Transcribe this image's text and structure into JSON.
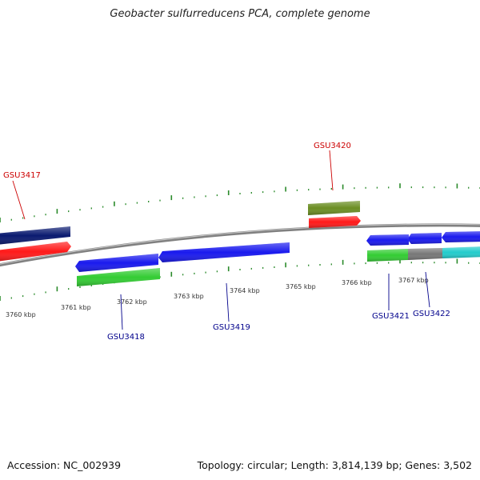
{
  "title": "Geobacter sulfurreducens PCA, complete genome",
  "footer": {
    "accession": "Accession: NC_002939",
    "summary": "Topology: circular; Length: 3,814,139 bp; Genes: 3,502"
  },
  "colors": {
    "backbone": "#808080",
    "tick": "#2a8a2a",
    "upper_label": "#cc0000",
    "lower_label": "#00008b",
    "scale_text": "#333333"
  },
  "scale_labels": [
    "3760 kbp",
    "3761 kbp",
    "3762 kbp",
    "3763 kbp",
    "3764 kbp",
    "3765 kbp",
    "3766 kbp",
    "3767 kbp"
  ],
  "features": [
    {
      "id": "navy-upper-left",
      "color": "#0a1a70"
    },
    {
      "id": "red-upper-left",
      "color": "#ff1a1a"
    },
    {
      "id": "olive-upper",
      "color": "#6b8e23"
    },
    {
      "id": "red-upper-right",
      "color": "#ff1a1a"
    },
    {
      "id": "blue-lower-1",
      "color": "#1a1aee"
    },
    {
      "id": "blue-lower-2",
      "color": "#1a1aee"
    },
    {
      "id": "green-lower",
      "color": "#33cc33"
    },
    {
      "id": "blue-right-1",
      "color": "#1a1aee"
    },
    {
      "id": "blue-right-2",
      "color": "#1a1aee"
    },
    {
      "id": "blue-right-3",
      "color": "#1a1aee"
    },
    {
      "id": "green-right",
      "color": "#33cc33"
    },
    {
      "id": "gray-right",
      "color": "#777777"
    },
    {
      "id": "cyan-right",
      "color": "#22cccc"
    }
  ],
  "gene_labels": [
    {
      "text": "GSU3417",
      "track": "upper"
    },
    {
      "text": "GSU3420",
      "track": "upper"
    },
    {
      "text": "GSU3418",
      "track": "lower"
    },
    {
      "text": "GSU3419",
      "track": "lower"
    },
    {
      "text": "GSU3421",
      "track": "lower"
    },
    {
      "text": "GSU3422",
      "track": "lower"
    }
  ]
}
